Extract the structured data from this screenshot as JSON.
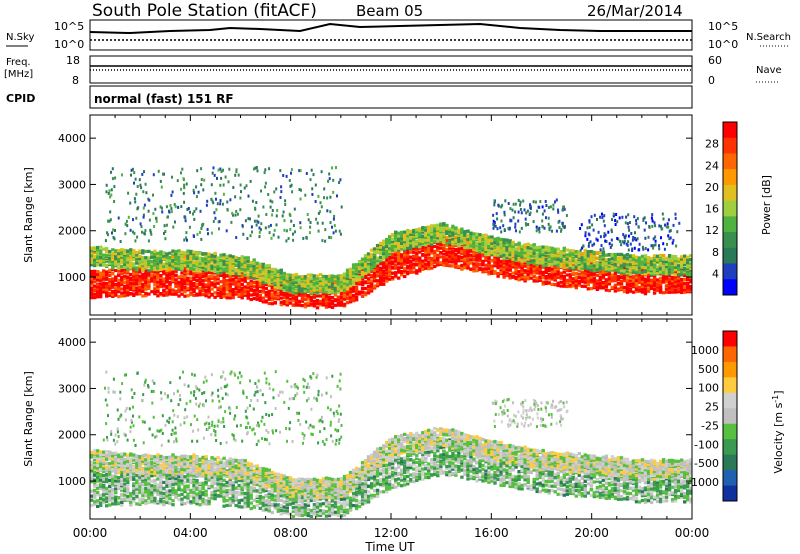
{
  "header": {
    "title": "South Pole Station (fitACF)",
    "beam": "Beam 05",
    "date": "26/Mar/2014"
  },
  "status_panels": {
    "nsky_label": "N.Sky",
    "nsearch_label": "N.Search",
    "noise_ticks": [
      "10^5",
      "10^0"
    ],
    "freq_label_line1": "Freq.",
    "freq_label_line2": "[MHz]",
    "freq_ticks": [
      "18",
      "8"
    ],
    "nave_label": "Nave",
    "nave_ticks": [
      "60",
      "0"
    ],
    "cpid_label": "CPID",
    "cpid_value": "normal (fast) 151 RF"
  },
  "colors": {
    "power_scale": [
      "#0000ff",
      "#1f3fbf",
      "#2a7a5a",
      "#3a8f4f",
      "#4fb33f",
      "#9fcf3f",
      "#e0c020",
      "#ff9900",
      "#ff6600",
      "#ff3300",
      "#ff0000"
    ],
    "velocity_scale": [
      "#1030a0",
      "#2060b0",
      "#2a7a5a",
      "#3a9a4f",
      "#58c040",
      "#c0c0c0",
      "#d0d0d0",
      "#ffcc40",
      "#ff9900",
      "#ff6600",
      "#ff0000"
    ]
  },
  "chart_data": [
    {
      "type": "heatmap",
      "name": "power",
      "ylabel": "Slant Range [km]",
      "xlabel": "",
      "ylim": [
        180,
        4500
      ],
      "xlim": [
        0,
        24
      ],
      "yticks": [
        "1000",
        "2000",
        "3000",
        "4000"
      ],
      "xticks": [
        "00:00",
        "04:00",
        "08:00",
        "12:00",
        "16:00",
        "20:00",
        "00:00"
      ],
      "colorbar": {
        "label": "Power [dB]",
        "ticks": [
          "28",
          "24",
          "20",
          "16",
          "12",
          "8",
          "4"
        ],
        "range": [
          0,
          30
        ]
      },
      "bands": [
        {
          "t": [
            0,
            24
          ],
          "r_center": [
            900,
            950,
            950,
            900,
            700,
            700,
            1300,
            1600,
            1400,
            1200,
            1100,
            1000,
            1000
          ],
          "width": 600,
          "value": 28
        },
        {
          "t": [
            0,
            24
          ],
          "r_center": [
            1500,
            1400,
            1400,
            1300,
            900,
            900,
            1800,
            2000,
            1700,
            1500,
            1400,
            1300,
            1300
          ],
          "width": 400,
          "value": 14
        }
      ],
      "scatter_regions": [
        {
          "t0": 0.5,
          "t1": 10,
          "r0": 1800,
          "r1": 3400,
          "value": 8
        },
        {
          "t0": 16,
          "t1": 19,
          "r0": 2000,
          "r1": 2700,
          "value": 6
        },
        {
          "t0": 19.5,
          "t1": 23.5,
          "r0": 1600,
          "r1": 2400,
          "value": 5
        }
      ]
    },
    {
      "type": "heatmap",
      "name": "velocity",
      "ylabel": "Slant Range [km]",
      "xlabel": "Time UT",
      "ylim": [
        180,
        4500
      ],
      "xlim": [
        0,
        24
      ],
      "yticks": [
        "1000",
        "2000",
        "3000",
        "4000"
      ],
      "xticks": [
        "00:00",
        "04:00",
        "08:00",
        "12:00",
        "16:00",
        "20:00",
        "00:00"
      ],
      "colorbar": {
        "label": "Velocity [m s^-1]",
        "ticks": [
          "1000",
          "500",
          "100",
          "25",
          "-25",
          "-100",
          "-500",
          "-1000"
        ],
        "range": [
          -1000,
          1000
        ]
      },
      "bands": [
        {
          "t": [
            0,
            24
          ],
          "r_center": [
            900,
            950,
            950,
            900,
            700,
            700,
            1300,
            1600,
            1400,
            1200,
            1100,
            1000,
            1000
          ],
          "width": 800,
          "value": -150
        },
        {
          "t": [
            0,
            24
          ],
          "r_center": [
            1500,
            1400,
            1400,
            1300,
            900,
            900,
            1800,
            2000,
            1700,
            1500,
            1400,
            1300,
            1300
          ],
          "width": 400,
          "value": 80
        }
      ],
      "scatter_regions": [
        {
          "t0": 0.5,
          "t1": 10,
          "r0": 1800,
          "r1": 3400,
          "value": -200
        },
        {
          "t0": 16,
          "t1": 19,
          "r0": 2200,
          "r1": 2800,
          "value": 20
        }
      ]
    }
  ]
}
